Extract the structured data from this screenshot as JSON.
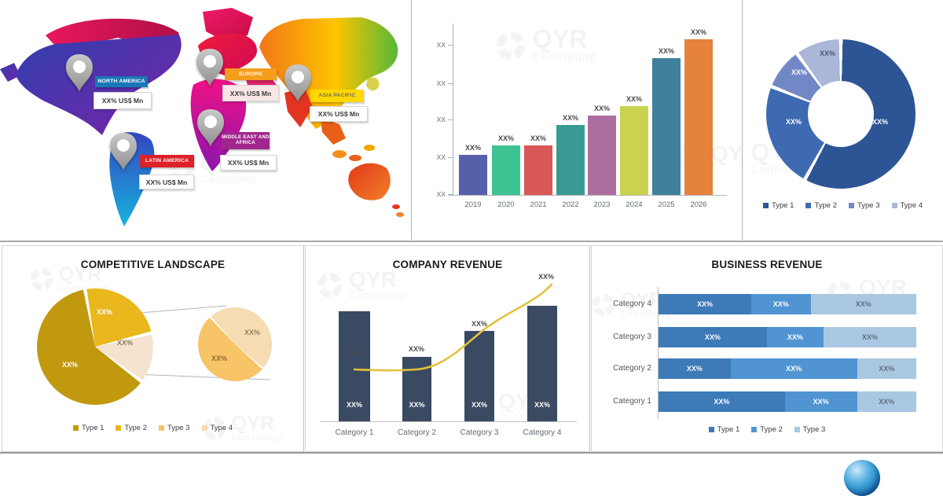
{
  "watermark": {
    "brand": "QYR",
    "tagline": "Consulting"
  },
  "footer": {
    "icon": "globe-icon"
  },
  "chart_data": [
    {
      "id": "regional-market-map",
      "type": "map",
      "regions": [
        {
          "name": "NORTH AMERICA",
          "value_label": "XX% US$ Mn",
          "badge_color": "#1878b8",
          "badge_text_color": "#ffffff",
          "value_bg": "#ffffff"
        },
        {
          "name": "EUROPE",
          "value_label": "XX% US$ Mn",
          "badge_color": "#f59d1c",
          "badge_text_color": "#ffffff",
          "value_bg": "#fae5e6"
        },
        {
          "name": "ASIA PACIFIC",
          "value_label": "XX% US$ Mn",
          "badge_color": "#ffd800",
          "badge_text_color": "#6b6b6b",
          "value_bg": "#ffffff"
        },
        {
          "name": "MIDDLE EAST AND AFRICA",
          "value_label": "XX% US$ Mn",
          "badge_color": "#a1268e",
          "badge_text_color": "#ffffff",
          "value_bg": "#ffffff"
        },
        {
          "name": "LATIN AMERICA",
          "value_label": "XX% US$ Mn",
          "badge_color": "#dd2127",
          "badge_text_color": "#ffffff",
          "value_bg": "#ffffff"
        }
      ]
    },
    {
      "id": "market-size-by-year",
      "type": "bar",
      "categories": [
        "2019",
        "2020",
        "2021",
        "2022",
        "2023",
        "2024",
        "2025",
        "2026"
      ],
      "values_rel_pct_of_max": [
        26,
        32,
        32,
        45,
        51,
        57,
        88,
        100
      ],
      "bar_labels": [
        "XX%",
        "XX%",
        "XX%",
        "XX%",
        "XX%",
        "XX%",
        "XX%",
        "XX%"
      ],
      "ytick_labels": [
        "XX",
        "XX",
        "XX",
        "XX",
        "XX"
      ],
      "bar_colors": [
        "#5560ab",
        "#3ec492",
        "#d95757",
        "#399a94",
        "#ad6fa0",
        "#c9d34f",
        "#40809b",
        "#e5823c"
      ],
      "grid": false,
      "legend_position": "none"
    },
    {
      "id": "market-share-by-type-donut",
      "type": "pie",
      "donut": true,
      "labels": [
        "Type 1",
        "Type 2",
        "Type 3",
        "Type 4"
      ],
      "values_pct": [
        58,
        23,
        9,
        10
      ],
      "slice_labels": [
        "XX%",
        "XX%",
        "XX%",
        "XX%"
      ],
      "colors": [
        "#2d5595",
        "#3e6ab2",
        "#7288c6",
        "#aab7d8"
      ],
      "legend_position": "bottom"
    },
    {
      "id": "competitive-landscape",
      "type": "pie-of-pie",
      "title": "COMPETITIVE LANDSCAPE",
      "legend": [
        "Type 1",
        "Type 2",
        "Type 3",
        "Type 4"
      ],
      "legend_colors": [
        "#c1990f",
        "#eab71c",
        "#f8c468",
        "#f5dcb2"
      ],
      "main_pie": {
        "start_angle_deg": -10,
        "slices": [
          {
            "label": "XX%",
            "pct": 24,
            "color": "#eab71c"
          },
          {
            "label": "XX%",
            "pct": 14,
            "color": "#f6e3cf"
          },
          {
            "label": "XX%",
            "pct": 62,
            "color": "#c1990f"
          }
        ]
      },
      "secondary_pie": {
        "start_angle_deg": -42,
        "slices": [
          {
            "label": "XX%",
            "pct": 48,
            "color": "#f5dcb2"
          },
          {
            "label": "XX%",
            "pct": 52,
            "color": "#f8c468"
          }
        ]
      }
    },
    {
      "id": "company-revenue",
      "type": "bar+line",
      "title": "COMPANY REVENUE",
      "categories": [
        "Category 1",
        "Category 2",
        "Category 3",
        "Category 4"
      ],
      "bar_values_pct_of_max": [
        95,
        56,
        78,
        100
      ],
      "bar_inner_labels": [
        "XX%",
        "XX%",
        "XX%",
        "XX%"
      ],
      "point_labels": [
        "XX%",
        "XX%",
        "XX%",
        "XX%"
      ],
      "line_values_pct_of_max": [
        45,
        45,
        76,
        111
      ],
      "bar_color": "#3b4a63",
      "line_color": "#e3c23c"
    },
    {
      "id": "business-revenue",
      "type": "stacked-bar-horizontal",
      "title": "BUSINESS REVENUE",
      "categories": [
        "Category 4",
        "Category 3",
        "Category 2",
        "Category 1"
      ],
      "series": [
        {
          "name": "Type 1",
          "color": "#3d7ab8",
          "values_pct": [
            36,
            42,
            28,
            49
          ]
        },
        {
          "name": "Type 2",
          "color": "#5095d2",
          "values_pct": [
            23,
            22,
            49,
            28
          ]
        },
        {
          "name": "Type 3",
          "color": "#aac7e2",
          "values_pct": [
            41,
            36,
            23,
            23
          ]
        }
      ],
      "segment_label": "XX%"
    }
  ]
}
